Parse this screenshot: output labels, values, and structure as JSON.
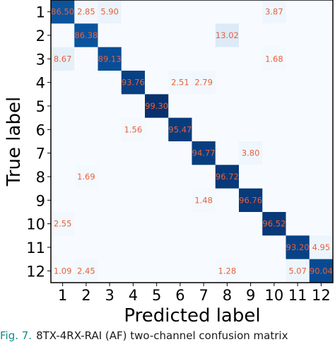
{
  "chart_data": {
    "type": "heatmap",
    "title": "",
    "xlabel": "Predicted label",
    "ylabel": "True label",
    "x_categories": [
      "1",
      "2",
      "3",
      "4",
      "5",
      "6",
      "7",
      "8",
      "9",
      "10",
      "11",
      "12"
    ],
    "y_categories": [
      "1",
      "2",
      "3",
      "4",
      "5",
      "6",
      "7",
      "8",
      "9",
      "10",
      "11",
      "12"
    ],
    "values": [
      [
        86.5,
        2.85,
        5.9,
        0,
        0,
        0,
        0,
        0,
        0,
        3.87,
        0,
        0
      ],
      [
        0,
        86.38,
        0,
        0,
        0,
        0,
        0,
        13.02,
        0,
        0,
        0,
        0
      ],
      [
        8.67,
        0,
        89.13,
        0,
        0,
        0,
        0,
        0,
        0,
        1.68,
        0,
        0
      ],
      [
        0,
        0,
        0,
        93.76,
        0,
        2.51,
        2.79,
        0,
        0,
        0,
        0,
        0
      ],
      [
        0,
        0,
        0,
        0,
        99.3,
        0,
        0,
        0,
        0,
        0,
        0,
        0
      ],
      [
        0,
        0,
        0,
        1.56,
        0,
        95.47,
        0,
        0,
        0,
        0,
        0,
        0
      ],
      [
        0,
        0,
        0,
        0,
        0,
        0,
        94.77,
        0,
        3.8,
        0,
        0,
        0
      ],
      [
        0,
        1.69,
        0,
        0,
        0,
        0,
        0,
        96.72,
        0,
        0,
        0,
        0
      ],
      [
        0,
        0,
        0,
        0,
        0,
        0,
        1.48,
        0,
        96.76,
        0,
        0,
        0
      ],
      [
        2.55,
        0,
        0,
        0,
        0,
        0,
        0,
        0,
        0,
        96.52,
        0,
        0
      ],
      [
        0,
        0,
        0,
        0,
        0,
        0,
        0,
        0,
        0,
        0,
        93.2,
        4.95
      ],
      [
        1.09,
        2.45,
        0,
        0,
        0,
        0,
        0,
        1.28,
        0,
        0,
        5.07,
        90.04
      ]
    ],
    "value_range": [
      0,
      100
    ],
    "colormap": "Blues",
    "cell_label_color": "#e8603c",
    "grid": false,
    "legend": "none"
  },
  "caption": {
    "label": "Fig. 7.",
    "text": "8TX-4RX-RAI (AF) two-channel confusion matrix"
  }
}
